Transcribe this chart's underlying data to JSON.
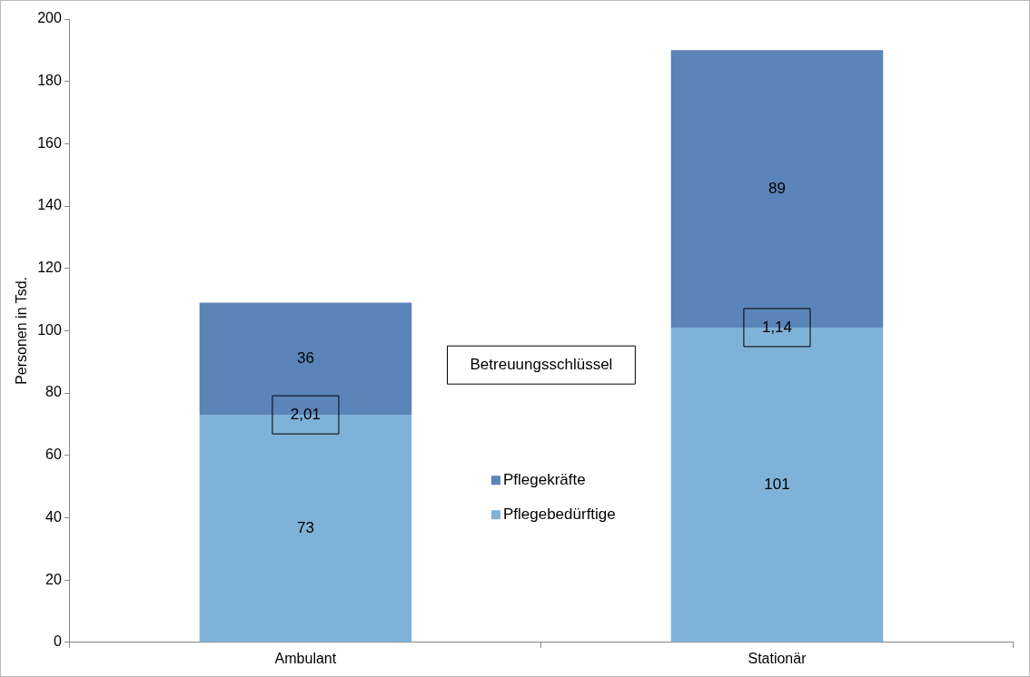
{
  "chart_data": {
    "type": "bar",
    "stacked": true,
    "categories": [
      "Ambulant",
      "Stationär"
    ],
    "series": [
      {
        "name": "Pflegebedürftige",
        "color": "#7fb2d8",
        "values": [
          73,
          101
        ]
      },
      {
        "name": "Pflegekräfte",
        "color": "#5b84b8",
        "values": [
          36,
          89
        ]
      }
    ],
    "ylabel": "Personen in Tsd.",
    "ylim": [
      0,
      200
    ],
    "yticks": [
      0,
      20,
      40,
      60,
      80,
      100,
      120,
      140,
      160,
      180,
      200
    ],
    "grid": false,
    "legend": "center",
    "data_labels": true,
    "annotations": [
      {
        "text": "2,01",
        "x": "Ambulant",
        "y": 73
      },
      {
        "text": "1,14",
        "x": "Stationär",
        "y": 101
      },
      "Betreuungsschlüssel"
    ]
  }
}
